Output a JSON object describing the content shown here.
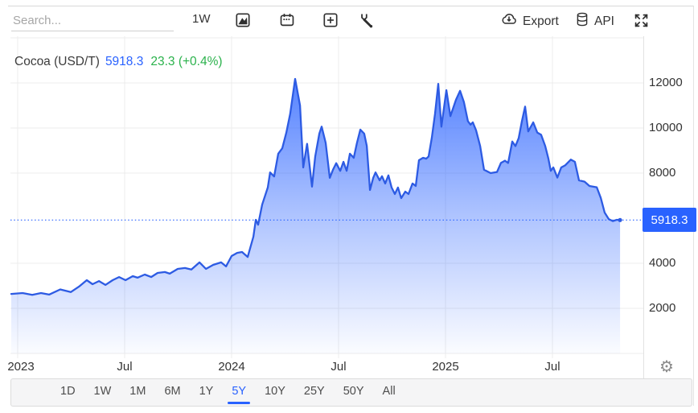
{
  "toolbar": {
    "search_placeholder": "Search...",
    "interval_label": "1W",
    "export_label": "Export",
    "api_label": "API"
  },
  "header": {
    "symbol": "Cocoa (USD/T)",
    "price": "5918.3",
    "change": "23.3 (+0.4%)"
  },
  "icons": {
    "gear": "⚙"
  },
  "colors": {
    "accent_blue": "#2962ff",
    "line_blue": "#2d5be3",
    "positive_green": "#2bb24c",
    "grid": "#ececec",
    "axis_text": "#333333",
    "footer_bg": "#f5f5f6"
  },
  "footer": {
    "ranges": [
      "1D",
      "1W",
      "1M",
      "6M",
      "1Y",
      "5Y",
      "10Y",
      "25Y",
      "50Y",
      "All"
    ],
    "active_range": "5Y"
  },
  "chart_data": {
    "type": "area",
    "title": "Cocoa (USD/T)",
    "unit": "USD/T",
    "last_value": 5918.3,
    "last_label": "5918.3",
    "change": 23.3,
    "change_percent": "+0.4%",
    "x_domain": [
      2022.97,
      2025.816
    ],
    "y_domain": [
      0,
      14000
    ],
    "grid": true,
    "legend": "none",
    "x_ticks": [
      {
        "t": 2023.0,
        "label": "2023"
      },
      {
        "t": 2023.5,
        "label": "Jul"
      },
      {
        "t": 2024.0,
        "label": "2024"
      },
      {
        "t": 2024.5,
        "label": "Jul"
      },
      {
        "t": 2025.0,
        "label": "2025"
      },
      {
        "t": 2025.5,
        "label": "Jul"
      }
    ],
    "y_ticks": [
      {
        "v": 2000,
        "label": "2000"
      },
      {
        "v": 4000,
        "label": "4000"
      },
      {
        "v": 8000,
        "label": "8000"
      },
      {
        "v": 10000,
        "label": "10000"
      },
      {
        "v": 12000,
        "label": "12000"
      }
    ],
    "series": [
      {
        "name": "Cocoa",
        "points": [
          [
            2022.97,
            2640
          ],
          [
            2023.023,
            2680
          ],
          [
            2023.068,
            2600
          ],
          [
            2023.109,
            2680
          ],
          [
            2023.147,
            2610
          ],
          [
            2023.199,
            2840
          ],
          [
            2023.248,
            2720
          ],
          [
            2023.286,
            2960
          ],
          [
            2023.323,
            3250
          ],
          [
            2023.35,
            3070
          ],
          [
            2023.38,
            3210
          ],
          [
            2023.41,
            3040
          ],
          [
            2023.444,
            3250
          ],
          [
            2023.474,
            3390
          ],
          [
            2023.504,
            3250
          ],
          [
            2023.538,
            3430
          ],
          [
            2023.56,
            3360
          ],
          [
            2023.594,
            3500
          ],
          [
            2023.624,
            3390
          ],
          [
            2023.654,
            3570
          ],
          [
            2023.688,
            3610
          ],
          [
            2023.711,
            3540
          ],
          [
            2023.748,
            3750
          ],
          [
            2023.782,
            3790
          ],
          [
            2023.812,
            3720
          ],
          [
            2023.85,
            4040
          ],
          [
            2023.88,
            3750
          ],
          [
            2023.914,
            3930
          ],
          [
            2023.951,
            4040
          ],
          [
            2023.974,
            3860
          ],
          [
            2024.0,
            4320
          ],
          [
            2024.026,
            4460
          ],
          [
            2024.049,
            4500
          ],
          [
            2024.075,
            4280
          ],
          [
            2024.102,
            5180
          ],
          [
            2024.113,
            5930
          ],
          [
            2024.124,
            5710
          ],
          [
            2024.143,
            6600
          ],
          [
            2024.169,
            7360
          ],
          [
            2024.18,
            8030
          ],
          [
            2024.199,
            7850
          ],
          [
            2024.218,
            8860
          ],
          [
            2024.237,
            9100
          ],
          [
            2024.256,
            9800
          ],
          [
            2024.274,
            10640
          ],
          [
            2024.297,
            12180
          ],
          [
            2024.32,
            11000
          ],
          [
            2024.335,
            8250
          ],
          [
            2024.353,
            9300
          ],
          [
            2024.376,
            7400
          ],
          [
            2024.391,
            8740
          ],
          [
            2024.41,
            9750
          ],
          [
            2024.421,
            10060
          ],
          [
            2024.44,
            9340
          ],
          [
            2024.459,
            7790
          ],
          [
            2024.474,
            8150
          ],
          [
            2024.489,
            8440
          ],
          [
            2024.508,
            8100
          ],
          [
            2024.523,
            8500
          ],
          [
            2024.538,
            8100
          ],
          [
            2024.553,
            8860
          ],
          [
            2024.571,
            8680
          ],
          [
            2024.586,
            9340
          ],
          [
            2024.602,
            9930
          ],
          [
            2024.62,
            9750
          ],
          [
            2024.632,
            9210
          ],
          [
            2024.647,
            7250
          ],
          [
            2024.662,
            7790
          ],
          [
            2024.673,
            8030
          ],
          [
            2024.692,
            7680
          ],
          [
            2024.703,
            7860
          ],
          [
            2024.718,
            7540
          ],
          [
            2024.733,
            7900
          ],
          [
            2024.748,
            7360
          ],
          [
            2024.763,
            7070
          ],
          [
            2024.778,
            7360
          ],
          [
            2024.793,
            6890
          ],
          [
            2024.812,
            7180
          ],
          [
            2024.827,
            7070
          ],
          [
            2024.846,
            7540
          ],
          [
            2024.861,
            7430
          ],
          [
            2024.876,
            8570
          ],
          [
            2024.895,
            8680
          ],
          [
            2024.91,
            8640
          ],
          [
            2024.921,
            8740
          ],
          [
            2024.936,
            9570
          ],
          [
            2024.951,
            10640
          ],
          [
            2024.966,
            11960
          ],
          [
            2024.981,
            10060
          ],
          [
            2025.004,
            11680
          ],
          [
            2025.023,
            10530
          ],
          [
            2025.049,
            11250
          ],
          [
            2025.068,
            11650
          ],
          [
            2025.086,
            11150
          ],
          [
            2025.105,
            10300
          ],
          [
            2025.117,
            10150
          ],
          [
            2025.128,
            10250
          ],
          [
            2025.143,
            9900
          ],
          [
            2025.162,
            9200
          ],
          [
            2025.18,
            8150
          ],
          [
            2025.211,
            8000
          ],
          [
            2025.241,
            8050
          ],
          [
            2025.259,
            8450
          ],
          [
            2025.278,
            8550
          ],
          [
            2025.293,
            8450
          ],
          [
            2025.312,
            9400
          ],
          [
            2025.327,
            9200
          ],
          [
            2025.342,
            9550
          ],
          [
            2025.357,
            10300
          ],
          [
            2025.372,
            10950
          ],
          [
            2025.387,
            9850
          ],
          [
            2025.41,
            10250
          ],
          [
            2025.429,
            9800
          ],
          [
            2025.447,
            9700
          ],
          [
            2025.466,
            9200
          ],
          [
            2025.481,
            8650
          ],
          [
            2025.492,
            8100
          ],
          [
            2025.504,
            8250
          ],
          [
            2025.523,
            7800
          ],
          [
            2025.541,
            8250
          ],
          [
            2025.56,
            8350
          ],
          [
            2025.586,
            8600
          ],
          [
            2025.605,
            8500
          ],
          [
            2025.624,
            7680
          ],
          [
            2025.65,
            7620
          ],
          [
            2025.673,
            7430
          ],
          [
            2025.707,
            7370
          ],
          [
            2025.726,
            6900
          ],
          [
            2025.744,
            6250
          ],
          [
            2025.763,
            5960
          ],
          [
            2025.782,
            5870
          ],
          [
            2025.801,
            5930
          ],
          [
            2025.816,
            5918.3
          ]
        ]
      }
    ]
  }
}
